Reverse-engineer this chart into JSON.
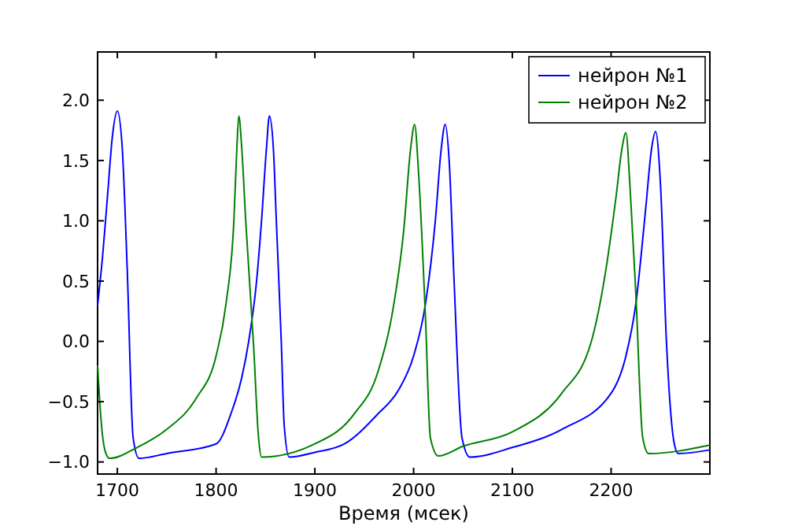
{
  "chart_data": {
    "type": "line",
    "xlabel": "Время (мсек)",
    "xlim": [
      1680,
      2300
    ],
    "xticks": [
      1700,
      1800,
      1900,
      2000,
      2100,
      2200
    ],
    "ylim": [
      -1.1,
      2.4
    ],
    "yticks": [
      {
        "value": -1,
        "label": "−1.0"
      },
      {
        "value": -0.5,
        "label": "−0.5"
      },
      {
        "value": 0,
        "label": "0.0"
      },
      {
        "value": 0.5,
        "label": "0.5"
      },
      {
        "value": 1,
        "label": "1.0"
      },
      {
        "value": 1.5,
        "label": "1.5"
      },
      {
        "value": 2,
        "label": "2.0"
      }
    ],
    "grid": false,
    "legend": "top right",
    "marker": "none",
    "line_style": "solid",
    "series": [
      {
        "name": "нейрон №1",
        "color": "#0000ff",
        "x": [
          1680,
          1685,
          1690,
          1695,
          1700,
          1705,
          1710,
          1716,
          1722,
          1750,
          1800,
          1815,
          1826,
          1833,
          1841,
          1846,
          1851,
          1854,
          1858,
          1861,
          1866,
          1869,
          1874,
          1900,
          1930,
          1964,
          1985,
          2000,
          2012,
          2022,
          2028,
          2032,
          2036,
          2041,
          2049,
          2057,
          2100,
          2150,
          2200,
          2215,
          2225,
          2235,
          2241,
          2245,
          2250,
          2256,
          2264,
          2268,
          2300
        ],
        "values": [
          0.3,
          0.7,
          1.2,
          1.7,
          1.91,
          1.6,
          0.6,
          -0.8,
          -0.97,
          -0.93,
          -0.85,
          -0.6,
          -0.3,
          0.0,
          0.5,
          1.0,
          1.6,
          1.87,
          1.6,
          1.0,
          0.0,
          -0.7,
          -0.96,
          -0.92,
          -0.85,
          -0.6,
          -0.4,
          -0.12,
          0.31,
          1.0,
          1.6,
          1.8,
          1.5,
          0.5,
          -0.8,
          -0.96,
          -0.88,
          -0.73,
          -0.43,
          -0.12,
          0.31,
          1.1,
          1.6,
          1.74,
          1.3,
          0.0,
          -0.85,
          -0.93,
          -0.9
        ]
      },
      {
        "name": "нейрон №2",
        "color": "#008000",
        "x": [
          1680,
          1684,
          1688,
          1692,
          1720,
          1750,
          1780,
          1800,
          1810,
          1818,
          1821,
          1823,
          1826,
          1830,
          1838,
          1843,
          1846,
          1900,
          1940,
          1964,
          1980,
          1990,
          1997,
          2001,
          2005,
          2012,
          2017,
          2025,
          2050,
          2100,
          2150,
          2180,
          2195,
          2205,
          2211,
          2215,
          2219,
          2225,
          2232,
          2238,
          2300
        ],
        "values": [
          -0.2,
          -0.7,
          -0.92,
          -0.97,
          -0.88,
          -0.73,
          -0.47,
          -0.12,
          0.31,
          1.0,
          1.6,
          1.87,
          1.6,
          1.0,
          -0.04,
          -0.8,
          -0.96,
          -0.85,
          -0.6,
          -0.25,
          0.31,
          0.92,
          1.6,
          1.8,
          1.4,
          0.2,
          -0.8,
          -0.95,
          -0.87,
          -0.75,
          -0.43,
          0.0,
          0.61,
          1.2,
          1.6,
          1.73,
          1.3,
          0.4,
          -0.8,
          -0.93,
          -0.86
        ]
      }
    ]
  }
}
